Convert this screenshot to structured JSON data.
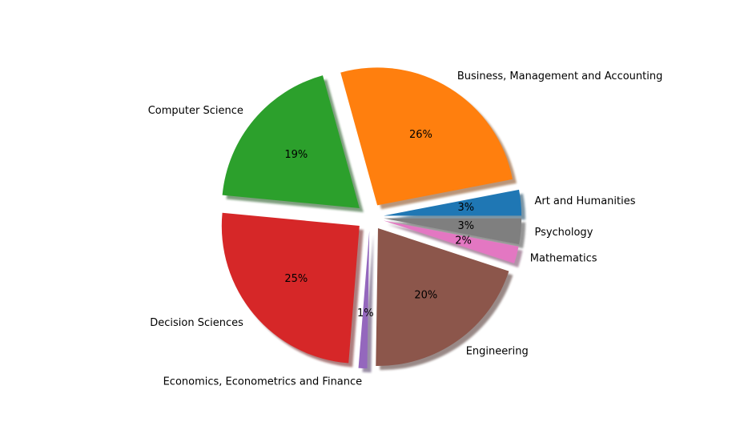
{
  "chart_data": {
    "type": "pie",
    "title": "",
    "shadow": true,
    "exploded": true,
    "start_angle_deg": 0,
    "direction": "counterclockwise",
    "slices": [
      {
        "label": "Art and Humanities",
        "value": 3,
        "pct_label": "3%",
        "color": "#1f77b4"
      },
      {
        "label": "Business, Management and Accounting",
        "value": 26,
        "pct_label": "26%",
        "color": "#ff7f0e"
      },
      {
        "label": "Computer Science",
        "value": 19,
        "pct_label": "19%",
        "color": "#2ca02c"
      },
      {
        "label": "Decision Sciences",
        "value": 25,
        "pct_label": "25%",
        "color": "#d62728"
      },
      {
        "label": "Economics, Econometrics and Finance",
        "value": 1,
        "pct_label": "1%",
        "color": "#9467bd"
      },
      {
        "label": "Engineering",
        "value": 20,
        "pct_label": "20%",
        "color": "#8c564b"
      },
      {
        "label": "Mathematics",
        "value": 2,
        "pct_label": "2%",
        "color": "#e377c2"
      },
      {
        "label": "Psychology",
        "value": 3,
        "pct_label": "3%",
        "color": "#7f7f7f"
      }
    ]
  }
}
